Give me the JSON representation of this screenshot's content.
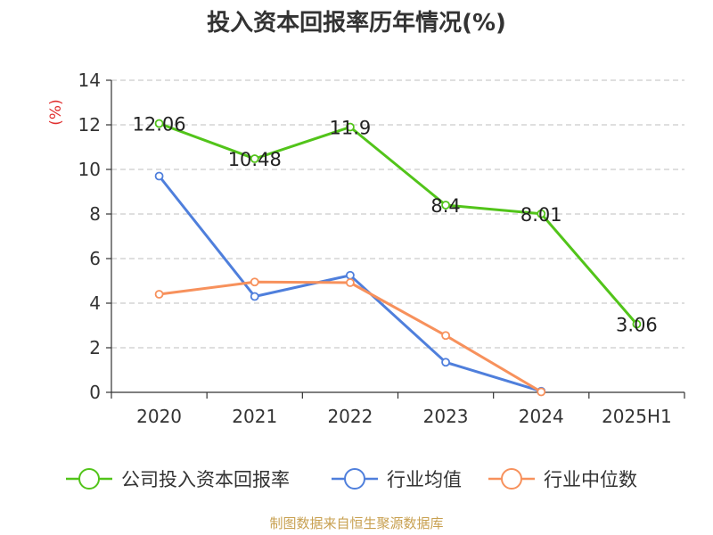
{
  "chart_data": {
    "type": "line",
    "title": "投入资本回报率历年情况(%)",
    "ylabel": "(%)",
    "categories": [
      "2020",
      "2021",
      "2022",
      "2023",
      "2024",
      "2025H1"
    ],
    "ylim": [
      0,
      14
    ],
    "yticks": [
      0,
      2,
      4,
      6,
      8,
      10,
      12,
      14
    ],
    "grid": true,
    "legend_position": "bottom",
    "series": [
      {
        "name": "公司投入资本回报率",
        "color": "#52c41a",
        "labeled": true,
        "values": [
          12.06,
          10.48,
          11.9,
          8.4,
          8.01,
          3.06
        ],
        "labels": [
          "12.06",
          "10.48",
          "11.9",
          "8.4",
          "8.01",
          "3.06"
        ]
      },
      {
        "name": "行业均值",
        "color": "#4f7fdc",
        "labeled": false,
        "values": [
          9.7,
          4.3,
          5.25,
          1.35,
          0.05,
          null
        ]
      },
      {
        "name": "行业中位数",
        "color": "#f7915c",
        "labeled": false,
        "values": [
          4.4,
          4.95,
          4.92,
          2.55,
          0.02,
          null
        ]
      }
    ]
  },
  "source": {
    "text": "制图数据来自恒生聚源数据库",
    "color": "#c8a050"
  },
  "colors": {
    "axis": "#333333",
    "grid": "#cccccc",
    "ylabel": "#e03030"
  }
}
